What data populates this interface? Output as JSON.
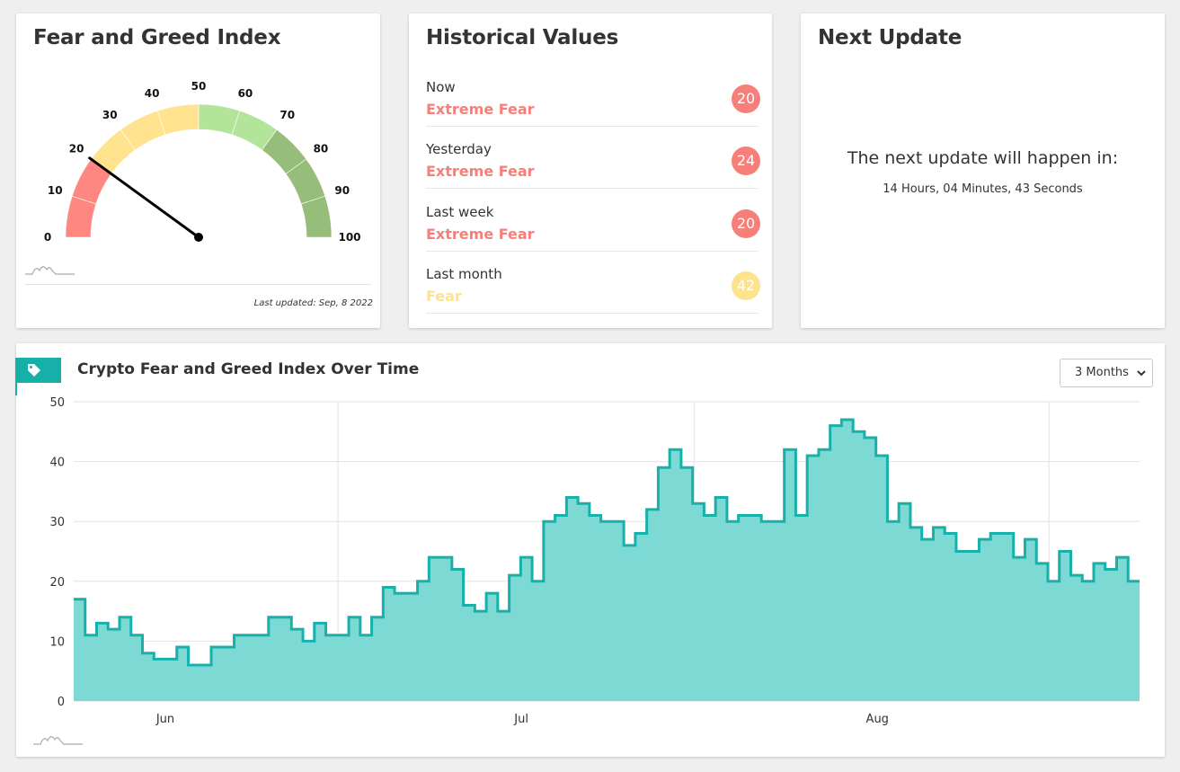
{
  "gauge_card": {
    "title": "Fear and Greed Index",
    "value": 20,
    "scale_labels": [
      "0",
      "10",
      "20",
      "30",
      "40",
      "50",
      "60",
      "70",
      "80",
      "90",
      "100"
    ],
    "colors": {
      "extreme_fear": "#ff8782",
      "fear": "#ffe38e",
      "greed": "#b2e59a",
      "extreme_greed": "#96bd7a"
    },
    "last_updated": "Last updated: Sep, 8 2022"
  },
  "historical": {
    "title": "Historical Values",
    "items": [
      {
        "period": "Now",
        "classification": "Extreme Fear",
        "value": "20",
        "color": "#f67f79"
      },
      {
        "period": "Yesterday",
        "classification": "Extreme Fear",
        "value": "24",
        "color": "#f67f79"
      },
      {
        "period": "Last week",
        "classification": "Extreme Fear",
        "value": "20",
        "color": "#f67f79"
      },
      {
        "period": "Last month",
        "classification": "Fear",
        "value": "42",
        "color": "#fde38b"
      }
    ]
  },
  "next_update": {
    "title": "Next Update",
    "text": "The next update will happen in:",
    "countdown": "14 Hours, 04 Minutes, 43 Seconds"
  },
  "history": {
    "title": "Crypto Fear and Greed Index Over Time",
    "range_selected": "3 Months",
    "tag_icon": "tag-icon"
  },
  "chart_data": {
    "type": "area",
    "step": true,
    "x_labels": [
      "Jun",
      "Jul",
      "Aug"
    ],
    "ylim": [
      0,
      50
    ],
    "yticks": [
      0,
      10,
      20,
      30,
      40,
      50
    ],
    "grid": true,
    "fill_color": "#7dd9d4",
    "line_color": "#18b1aa",
    "values": [
      17,
      11,
      13,
      12,
      14,
      11,
      8,
      7,
      7,
      9,
      6,
      6,
      9,
      9,
      11,
      11,
      11,
      14,
      14,
      12,
      10,
      13,
      11,
      11,
      14,
      11,
      14,
      19,
      18,
      18,
      20,
      24,
      24,
      22,
      16,
      15,
      18,
      15,
      21,
      24,
      20,
      30,
      31,
      34,
      33,
      31,
      30,
      30,
      26,
      28,
      32,
      39,
      42,
      39,
      33,
      31,
      34,
      30,
      31,
      31,
      30,
      30,
      42,
      31,
      41,
      42,
      46,
      47,
      45,
      44,
      41,
      30,
      33,
      29,
      27,
      29,
      28,
      25,
      25,
      27,
      28,
      28,
      24,
      27,
      23,
      20,
      25,
      21,
      20,
      23,
      22,
      24,
      20
    ]
  }
}
